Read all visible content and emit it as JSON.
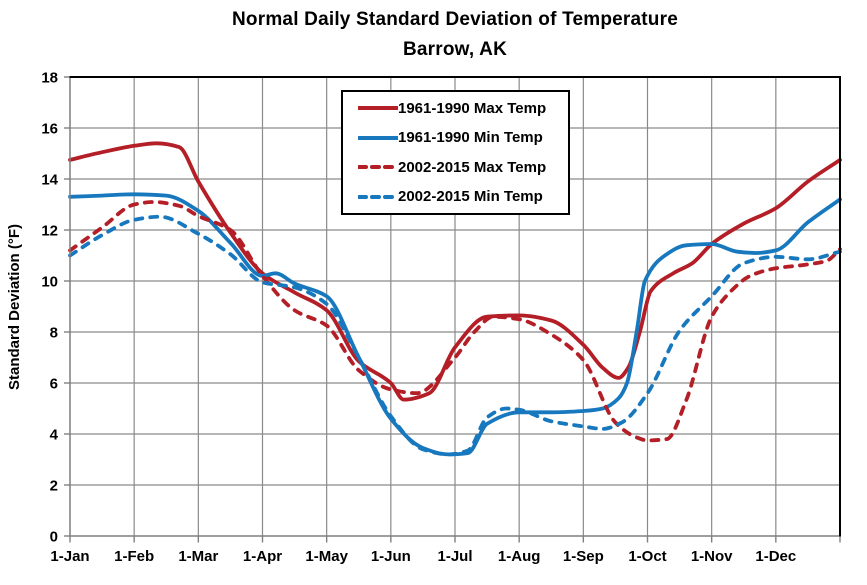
{
  "colors": {
    "max_temp_red": "#B41E26",
    "min_temp_blue": "#1878BE",
    "gridline_gray": "#8A8A8A",
    "axis_gray": "#7F7F7F",
    "border_black": "#000000",
    "text_black": "#000000",
    "background": "#FFFFFF"
  },
  "chart_data": {
    "type": "line",
    "title": "Normal Daily Standard Deviation of Temperature",
    "subtitle": "Barrow, AK",
    "xlabel": "",
    "ylabel": "Standard Deviation (°F)",
    "ylim": [
      0,
      18
    ],
    "yticks": [
      0,
      2,
      4,
      6,
      8,
      10,
      12,
      14,
      16,
      18
    ],
    "x_tick_labels": [
      "1-Jan",
      "1-Feb",
      "1-Mar",
      "1-Apr",
      "1-May",
      "1-Jun",
      "1-Jul",
      "1-Aug",
      "1-Sep",
      "1-Oct",
      "1-Nov",
      "1-Dec"
    ],
    "x_unit": "fractional month index (0 = Jan 1, 12 = Dec 31)",
    "grid": true,
    "legend_position": "inside-top-center",
    "series": [
      {
        "name": "1961-1990 Max Temp",
        "color_key": "max_temp_red",
        "dashed": false,
        "points": [
          [
            0,
            14.75
          ],
          [
            0.5,
            15.05
          ],
          [
            1,
            15.3
          ],
          [
            1.35,
            15.4
          ],
          [
            1.7,
            15.25
          ],
          [
            2,
            13.9
          ],
          [
            2.5,
            11.9
          ],
          [
            3,
            10.3
          ],
          [
            3.5,
            9.55
          ],
          [
            4,
            8.85
          ],
          [
            4.5,
            6.85
          ],
          [
            5,
            6.0
          ],
          [
            5.2,
            5.35
          ],
          [
            5.6,
            5.6
          ],
          [
            6,
            7.4
          ],
          [
            6.5,
            8.6
          ],
          [
            7,
            8.65
          ],
          [
            7.5,
            8.45
          ],
          [
            8,
            7.5
          ],
          [
            8.3,
            6.6
          ],
          [
            8.55,
            6.2
          ],
          [
            8.7,
            6.6
          ],
          [
            8.88,
            8.0
          ],
          [
            9.05,
            9.6
          ],
          [
            9.4,
            10.3
          ],
          [
            9.7,
            10.7
          ],
          [
            10,
            11.45
          ],
          [
            10.5,
            12.25
          ],
          [
            11,
            12.85
          ],
          [
            11.5,
            13.9
          ],
          [
            12,
            14.75
          ]
        ]
      },
      {
        "name": "1961-1990 Min Temp",
        "color_key": "min_temp_blue",
        "dashed": false,
        "points": [
          [
            0,
            13.3
          ],
          [
            0.5,
            13.35
          ],
          [
            1,
            13.4
          ],
          [
            1.5,
            13.35
          ],
          [
            2,
            12.75
          ],
          [
            2.5,
            11.5
          ],
          [
            3,
            10.2
          ],
          [
            3.2,
            10.3
          ],
          [
            3.5,
            9.9
          ],
          [
            4,
            9.4
          ],
          [
            4.5,
            7.0
          ],
          [
            5,
            4.6
          ],
          [
            5.5,
            3.45
          ],
          [
            5.9,
            3.2
          ],
          [
            6.2,
            3.25
          ],
          [
            6.5,
            4.4
          ],
          [
            7,
            4.85
          ],
          [
            7.5,
            4.85
          ],
          [
            8,
            4.9
          ],
          [
            8.3,
            5.0
          ],
          [
            8.55,
            5.4
          ],
          [
            8.68,
            6.0
          ],
          [
            8.83,
            8.0
          ],
          [
            8.96,
            10.0
          ],
          [
            9.3,
            11.05
          ],
          [
            9.6,
            11.4
          ],
          [
            10,
            11.45
          ],
          [
            10.4,
            11.15
          ],
          [
            10.7,
            11.1
          ],
          [
            11,
            11.2
          ],
          [
            11.5,
            12.3
          ],
          [
            12,
            13.2
          ]
        ]
      },
      {
        "name": "2002-2015 Max Temp",
        "color_key": "max_temp_red",
        "dashed": true,
        "points": [
          [
            0,
            11.2
          ],
          [
            0.5,
            12.1
          ],
          [
            1,
            13.0
          ],
          [
            1.3,
            13.1
          ],
          [
            1.7,
            12.95
          ],
          [
            2,
            12.55
          ],
          [
            2.5,
            12.0
          ],
          [
            3,
            10.2
          ],
          [
            3.5,
            8.85
          ],
          [
            4,
            8.25
          ],
          [
            4.5,
            6.5
          ],
          [
            5,
            5.75
          ],
          [
            5.4,
            5.6
          ],
          [
            6,
            7.0
          ],
          [
            6.3,
            8.0
          ],
          [
            6.6,
            8.6
          ],
          [
            7,
            8.5
          ],
          [
            7.5,
            7.9
          ],
          [
            8,
            6.9
          ],
          [
            8.5,
            4.45
          ],
          [
            8.8,
            3.9
          ],
          [
            9,
            3.75
          ],
          [
            9.3,
            3.8
          ],
          [
            9.6,
            5.3
          ],
          [
            10,
            8.6
          ],
          [
            10.3,
            9.6
          ],
          [
            10.6,
            10.2
          ],
          [
            11,
            10.5
          ],
          [
            11.5,
            10.65
          ],
          [
            11.8,
            10.8
          ],
          [
            12,
            11.25
          ]
        ]
      },
      {
        "name": "2002-2015 Min Temp",
        "color_key": "min_temp_blue",
        "dashed": true,
        "points": [
          [
            0,
            11.0
          ],
          [
            0.5,
            11.8
          ],
          [
            1,
            12.4
          ],
          [
            1.4,
            12.52
          ],
          [
            2,
            11.85
          ],
          [
            2.5,
            11.05
          ],
          [
            3,
            9.95
          ],
          [
            3.5,
            9.75
          ],
          [
            4,
            9.1
          ],
          [
            4.5,
            7.0
          ],
          [
            5,
            4.7
          ],
          [
            5.5,
            3.4
          ],
          [
            5.9,
            3.2
          ],
          [
            6.2,
            3.35
          ],
          [
            6.5,
            4.65
          ],
          [
            6.8,
            5.0
          ],
          [
            7,
            4.95
          ],
          [
            7.5,
            4.5
          ],
          [
            8,
            4.3
          ],
          [
            8.3,
            4.2
          ],
          [
            8.6,
            4.45
          ],
          [
            9,
            5.6
          ],
          [
            9.5,
            8.05
          ],
          [
            10,
            9.4
          ],
          [
            10.5,
            10.7
          ],
          [
            11,
            10.95
          ],
          [
            11.5,
            10.85
          ],
          [
            12,
            11.15
          ]
        ]
      }
    ]
  }
}
